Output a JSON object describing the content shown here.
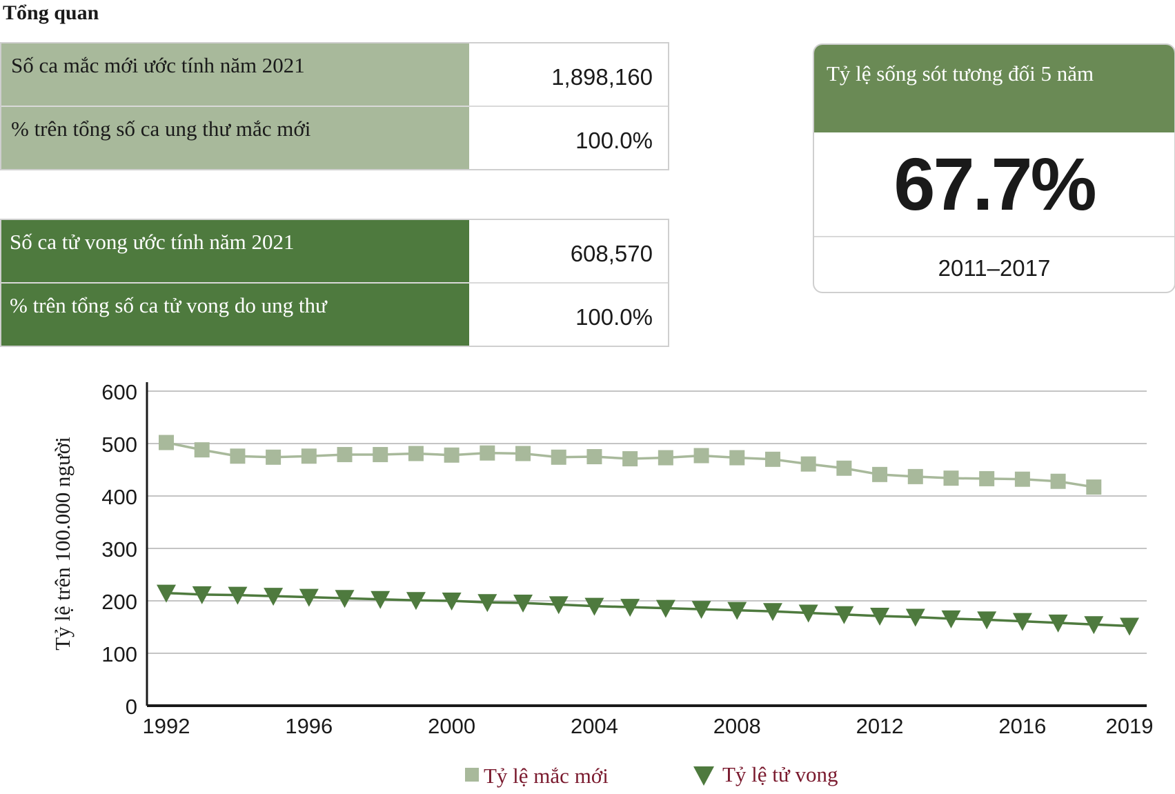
{
  "page_title": "Tổng quan",
  "incidence_table": [
    {
      "label": "Số ca mắc mới ước tính năm 2021",
      "value": "1,898,160"
    },
    {
      "label": "% trên tổng số ca ung thư mắc mới",
      "value": "100.0%"
    }
  ],
  "mortality_table": [
    {
      "label": "Số ca tử vong ước tính năm 2021",
      "value": "608,570"
    },
    {
      "label": "% trên tổng số ca tử vong do ung thư",
      "value": "100.0%"
    }
  ],
  "survival": {
    "title": "Tỷ lệ sống sót tương đối 5 năm",
    "value": "67.7%",
    "period": "2011–2017"
  },
  "colors": {
    "incidence": "#a8b99b",
    "mortality": "#4e7a3e",
    "survival_header": "#6a8a55"
  },
  "chart_data": {
    "type": "line",
    "ylabel": "Tỷ lệ trên 100.000 người",
    "xlabel": "",
    "ylim": [
      0,
      600
    ],
    "yticks": [
      0,
      100,
      200,
      300,
      400,
      500,
      600
    ],
    "xlim": [
      1992,
      2019
    ],
    "xticks": [
      1992,
      1996,
      2000,
      2004,
      2008,
      2012,
      2016,
      2019
    ],
    "grid": true,
    "legend_position": "bottom",
    "series": [
      {
        "name": "Tỷ lệ mắc mới",
        "marker": "square",
        "x": [
          1992,
          1993,
          1994,
          1995,
          1996,
          1997,
          1998,
          1999,
          2000,
          2001,
          2002,
          2003,
          2004,
          2005,
          2006,
          2007,
          2008,
          2009,
          2010,
          2011,
          2012,
          2013,
          2014,
          2015,
          2016,
          2017,
          2018
        ],
        "values": [
          502,
          488,
          476,
          474,
          476,
          479,
          479,
          481,
          478,
          482,
          481,
          474,
          475,
          471,
          473,
          477,
          473,
          470,
          461,
          453,
          441,
          437,
          434,
          433,
          432,
          428,
          417
        ]
      },
      {
        "name": "Tỷ lệ tử vong",
        "marker": "triangle-down",
        "x": [
          1992,
          1993,
          1994,
          1995,
          1996,
          1997,
          1998,
          1999,
          2000,
          2001,
          2002,
          2003,
          2004,
          2005,
          2006,
          2007,
          2008,
          2009,
          2010,
          2011,
          2012,
          2013,
          2014,
          2015,
          2016,
          2017,
          2018,
          2019
        ],
        "values": [
          215,
          212,
          211,
          209,
          207,
          205,
          203,
          201,
          200,
          197,
          196,
          193,
          190,
          188,
          186,
          184,
          182,
          180,
          177,
          174,
          171,
          169,
          166,
          164,
          161,
          158,
          155,
          152
        ]
      }
    ]
  }
}
